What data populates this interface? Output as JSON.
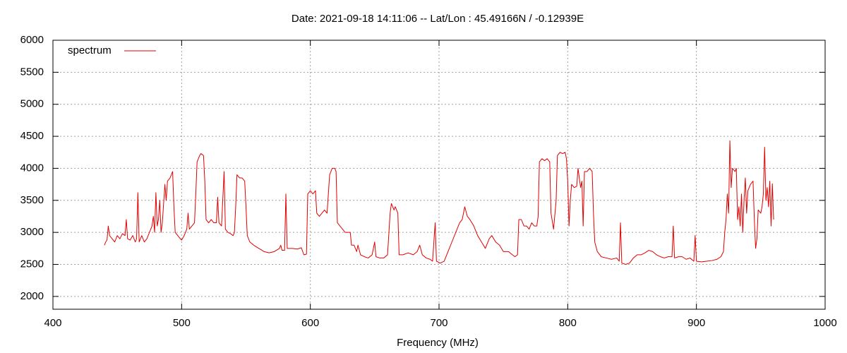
{
  "chart_data": {
    "type": "line",
    "title": "Date: 2021-09-18 14:11:06  --  Lat/Lon : 45.49166N / -0.12939E",
    "x_label": "Frequency (MHz)",
    "xlim": [
      400,
      1000
    ],
    "xticks": [
      400,
      500,
      600,
      700,
      800,
      900,
      1000
    ],
    "ylim": [
      1800,
      6000
    ],
    "yticks": [
      2000,
      2500,
      3000,
      3500,
      4000,
      4500,
      5000,
      5500,
      6000
    ],
    "grid": true,
    "legend": "upper left",
    "x": [
      440,
      441,
      442,
      443,
      444,
      446,
      448,
      450,
      452,
      454,
      456,
      457,
      458,
      460,
      462,
      464,
      465,
      466,
      467,
      469,
      471,
      473,
      475,
      477,
      478,
      479,
      480,
      481,
      482,
      483,
      484,
      485,
      487,
      488,
      489,
      491,
      492,
      493,
      494,
      495,
      497,
      499,
      500,
      502,
      504,
      505,
      506,
      508,
      510,
      511,
      512,
      514,
      515,
      517,
      518,
      519,
      521,
      523,
      525,
      527,
      528,
      529,
      531,
      533,
      534,
      536,
      538,
      540,
      541,
      542,
      543,
      545,
      547,
      549,
      550,
      551,
      553,
      556,
      560,
      564,
      568,
      572,
      576,
      577,
      578,
      580,
      581,
      582,
      586,
      590,
      593,
      595,
      597,
      598,
      600,
      602,
      604,
      605,
      607,
      609,
      611,
      613,
      615,
      617,
      619,
      620,
      621,
      623,
      625,
      627,
      629,
      631,
      632,
      634,
      636,
      637,
      639,
      642,
      645,
      648,
      650,
      651,
      654,
      657,
      660,
      662,
      663,
      665,
      666,
      668,
      669,
      672,
      676,
      680,
      683,
      685,
      687,
      690,
      693,
      695,
      697,
      698,
      701,
      704,
      707,
      710,
      713,
      716,
      718,
      720,
      722,
      724,
      727,
      730,
      733,
      736,
      739,
      741,
      744,
      747,
      750,
      754,
      757,
      759,
      761,
      762,
      764,
      766,
      768,
      770,
      772,
      774,
      776,
      777,
      778,
      780,
      782,
      784,
      786,
      787,
      789,
      791,
      792,
      794,
      796,
      798,
      799,
      800,
      801,
      802,
      803,
      805,
      807,
      808,
      810,
      811,
      812,
      813,
      815,
      817,
      819,
      820,
      821,
      823,
      826,
      830,
      834,
      838,
      840,
      841,
      842,
      845,
      848,
      851,
      854,
      857,
      860,
      863,
      866,
      869,
      872,
      875,
      878,
      881,
      882,
      883,
      886,
      889,
      892,
      895,
      898,
      899,
      900,
      904,
      908,
      912,
      916,
      919,
      921,
      922,
      923,
      924,
      925,
      926,
      927,
      928,
      930,
      931,
      932,
      933,
      934,
      935,
      936,
      937,
      938,
      939,
      940,
      942,
      944,
      945,
      946,
      947,
      948,
      950,
      951,
      952,
      953,
      954,
      955,
      956,
      957,
      958,
      959,
      960
    ],
    "series": [
      {
        "name": "spectrum",
        "color": "#e00000",
        "values": [
          2800,
          2850,
          2880,
          3100,
          2950,
          2900,
          2850,
          2950,
          2900,
          2980,
          2950,
          3200,
          2900,
          2880,
          2950,
          2850,
          2900,
          3620,
          2850,
          2950,
          2850,
          2900,
          3000,
          3100,
          3250,
          3000,
          3620,
          3100,
          3200,
          3500,
          3000,
          3150,
          3750,
          3500,
          3800,
          3850,
          3900,
          3950,
          3400,
          3000,
          2950,
          2900,
          2880,
          2950,
          3050,
          3300,
          3050,
          3100,
          3150,
          3600,
          4100,
          4200,
          4230,
          4200,
          3800,
          3200,
          3150,
          3200,
          3150,
          3150,
          3550,
          3150,
          3100,
          3950,
          3050,
          3000,
          2980,
          2950,
          3000,
          3400,
          3900,
          3850,
          3850,
          3800,
          3400,
          2950,
          2850,
          2800,
          2750,
          2700,
          2680,
          2700,
          2750,
          2800,
          2720,
          2720,
          3600,
          2750,
          2750,
          2740,
          2760,
          2650,
          2660,
          3600,
          3650,
          3600,
          3650,
          3300,
          3250,
          3300,
          3350,
          3300,
          3900,
          4000,
          4000,
          3950,
          3150,
          3100,
          3050,
          3000,
          3000,
          3000,
          2800,
          2800,
          2700,
          2800,
          2650,
          2620,
          2600,
          2650,
          2850,
          2620,
          2600,
          2600,
          2650,
          3300,
          3450,
          3350,
          3400,
          3300,
          2650,
          2650,
          2680,
          2650,
          2700,
          2800,
          2650,
          2600,
          2580,
          2550,
          3150,
          2550,
          2520,
          2550,
          2700,
          2850,
          3000,
          3150,
          3200,
          3400,
          3250,
          3200,
          3100,
          2950,
          2850,
          2750,
          2900,
          2950,
          2850,
          2800,
          2700,
          2700,
          2650,
          2620,
          2650,
          3200,
          3200,
          3100,
          3100,
          3050,
          3150,
          3100,
          3100,
          3250,
          4100,
          4150,
          4120,
          4150,
          4100,
          3300,
          3050,
          3500,
          4200,
          4250,
          4230,
          4250,
          4150,
          3800,
          3100,
          3500,
          3750,
          3700,
          3720,
          4000,
          3700,
          3800,
          3100,
          3950,
          3950,
          4000,
          3950,
          3300,
          2850,
          2700,
          2620,
          2600,
          2580,
          2600,
          2550,
          3150,
          2520,
          2500,
          2520,
          2600,
          2650,
          2650,
          2680,
          2720,
          2700,
          2650,
          2620,
          2600,
          2620,
          2620,
          3100,
          2600,
          2620,
          2620,
          2580,
          2600,
          2550,
          2950,
          2550,
          2540,
          2550,
          2560,
          2580,
          2620,
          2700,
          3000,
          3200,
          3600,
          3300,
          4430,
          3700,
          4000,
          3950,
          4000,
          3200,
          3400,
          3100,
          3600,
          3000,
          3500,
          3850,
          3300,
          3650,
          3750,
          3800,
          3200,
          2750,
          2900,
          3350,
          3300,
          3400,
          3600,
          4330,
          3500,
          3700,
          3400,
          3800,
          3100,
          3760,
          3200
        ]
      }
    ]
  }
}
